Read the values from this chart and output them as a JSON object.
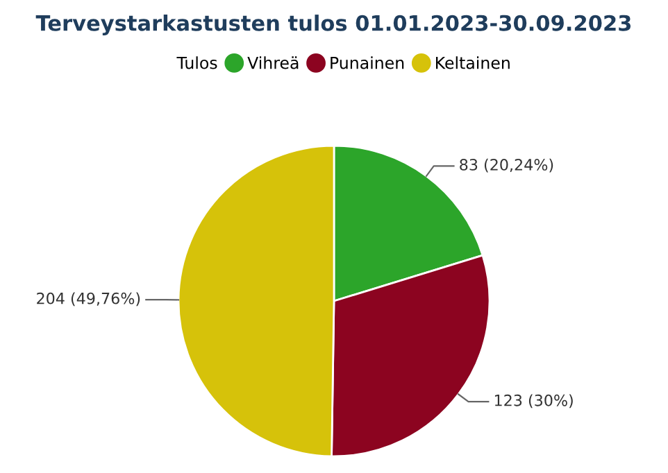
{
  "chart_data": {
    "type": "pie",
    "title": "Terveystarkastusten tulos 01.01.2023-30.09.2023",
    "legend_title": "Tulos",
    "legend": "top",
    "categories": [
      "Vihreä",
      "Punainen",
      "Keltainen"
    ],
    "values": [
      83,
      123,
      204
    ],
    "colors": [
      "#2ca52a",
      "#8c0420",
      "#d6c20a"
    ],
    "value_labels": [
      "83 (20,24%)",
      "123 (30%)",
      "204 (49,76%)"
    ]
  }
}
